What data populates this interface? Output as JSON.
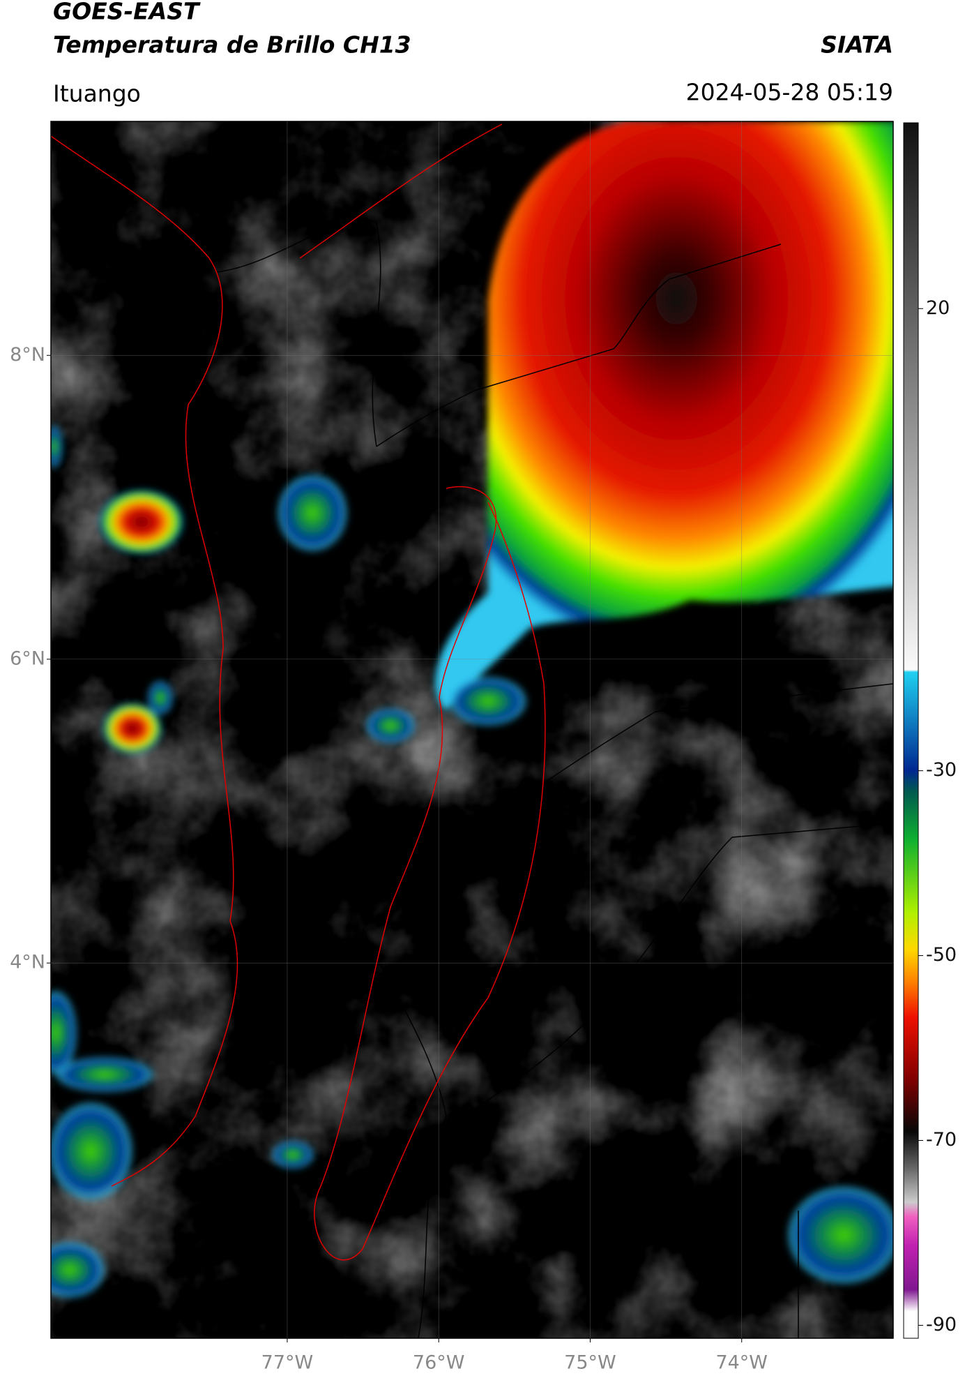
{
  "header": {
    "title_line1": "GOES-EAST",
    "title_line2": "Temperatura de Brillo CH13",
    "organization": "SIATA",
    "location": "Ituango",
    "datetime": "2024-05-28 05:19"
  },
  "map": {
    "xlim": [
      -78.56,
      -73.0
    ],
    "ylim": [
      1.53,
      9.54
    ],
    "xticks": [
      {
        "value": -77,
        "label": "77°W"
      },
      {
        "value": -76,
        "label": "76°W"
      },
      {
        "value": -75,
        "label": "75°W"
      },
      {
        "value": -74,
        "label": "74°W"
      }
    ],
    "yticks": [
      {
        "value": 8,
        "label": "8°N"
      },
      {
        "value": 6,
        "label": "6°N"
      },
      {
        "value": 4,
        "label": "4°N"
      }
    ],
    "grid": true
  },
  "colorbar": {
    "lim": [
      -91.4,
      40.1
    ],
    "ticks": [
      20,
      -30,
      -50,
      -70,
      -90
    ]
  }
}
